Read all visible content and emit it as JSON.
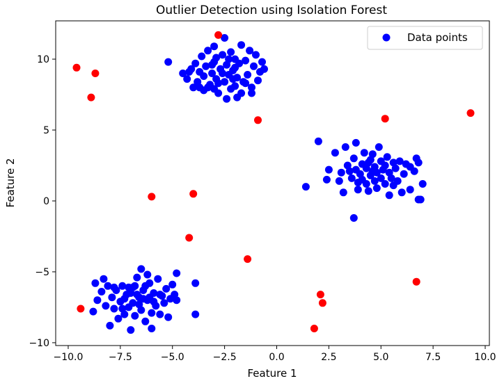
{
  "chart_data": {
    "type": "scatter",
    "title": "Outlier Detection using Isolation Forest",
    "xlabel": "Feature 1",
    "ylabel": "Feature 2",
    "xlim": [
      -10.6,
      10.2
    ],
    "ylim": [
      -10.2,
      12.7
    ],
    "grid": false,
    "legend": {
      "placement": "top-right",
      "entries": [
        "Data points"
      ]
    },
    "colors": {
      "inliers": "#0000ff",
      "outliers": "#ff0000"
    },
    "xticks": [
      {
        "value": -10.0,
        "label": "−10.0"
      },
      {
        "value": -7.5,
        "label": "−7.5"
      },
      {
        "value": -5.0,
        "label": "−5.0"
      },
      {
        "value": -2.5,
        "label": "−2.5"
      },
      {
        "value": 0.0,
        "label": "0.0"
      },
      {
        "value": 2.5,
        "label": "2.5"
      },
      {
        "value": 5.0,
        "label": "5.0"
      },
      {
        "value": 7.5,
        "label": "7.5"
      },
      {
        "value": 10.0,
        "label": "10.0"
      }
    ],
    "yticks": [
      {
        "value": -10,
        "label": "−10"
      },
      {
        "value": -5,
        "label": "−5"
      },
      {
        "value": 0,
        "label": "0"
      },
      {
        "value": 5,
        "label": "5"
      },
      {
        "value": 10,
        "label": "10"
      }
    ],
    "series": [
      {
        "name": "Data points",
        "color": "#0000ff",
        "points": [
          [
            -5.2,
            9.8
          ],
          [
            -4.5,
            9.0
          ],
          [
            -4.3,
            8.6
          ],
          [
            -4.1,
            9.3
          ],
          [
            -4.0,
            8.0
          ],
          [
            -3.9,
            9.7
          ],
          [
            -3.8,
            8.4
          ],
          [
            -3.7,
            9.1
          ],
          [
            -3.6,
            10.2
          ],
          [
            -3.5,
            8.8
          ],
          [
            -3.5,
            7.8
          ],
          [
            -3.4,
            9.5
          ],
          [
            -3.3,
            10.6
          ],
          [
            -3.2,
            8.2
          ],
          [
            -3.1,
            9.0
          ],
          [
            -3.0,
            10.9
          ],
          [
            -3.0,
            9.8
          ],
          [
            -2.9,
            8.6
          ],
          [
            -2.8,
            7.6
          ],
          [
            -2.7,
            9.3
          ],
          [
            -2.6,
            10.3
          ],
          [
            -2.5,
            8.4
          ],
          [
            -2.5,
            11.5
          ],
          [
            -2.4,
            9.6
          ],
          [
            -2.3,
            8.9
          ],
          [
            -2.2,
            10.5
          ],
          [
            -2.2,
            7.9
          ],
          [
            -2.1,
            9.2
          ],
          [
            -2.0,
            8.1
          ],
          [
            -2.0,
            10.0
          ],
          [
            -1.9,
            7.3
          ],
          [
            -1.9,
            8.7
          ],
          [
            -1.8,
            9.7
          ],
          [
            -1.7,
            7.6
          ],
          [
            -1.7,
            11.0
          ],
          [
            -1.6,
            8.4
          ],
          [
            -1.5,
            9.9
          ],
          [
            -1.4,
            8.9
          ],
          [
            -1.3,
            10.6
          ],
          [
            -1.2,
            8.0
          ],
          [
            -1.1,
            9.5
          ],
          [
            -1.0,
            10.3
          ],
          [
            -0.9,
            8.5
          ],
          [
            -0.8,
            9.1
          ],
          [
            -0.7,
            9.8
          ],
          [
            -0.6,
            9.3
          ],
          [
            -1.2,
            7.6
          ],
          [
            -2.4,
            7.2
          ],
          [
            -2.9,
            10.1
          ],
          [
            -3.7,
            8.0
          ],
          [
            -3.3,
            8.0
          ],
          [
            -4.2,
            9.1
          ],
          [
            -2.6,
            9.0
          ],
          [
            -2.0,
            9.4
          ],
          [
            -1.5,
            8.3
          ],
          [
            -3.1,
            9.6
          ],
          [
            -2.8,
            8.3
          ],
          [
            -2.3,
            10.0
          ],
          [
            -3.0,
            7.9
          ],
          [
            -2.1,
            8.6
          ],
          [
            1.4,
            1.0
          ],
          [
            2.0,
            4.2
          ],
          [
            2.4,
            1.5
          ],
          [
            2.5,
            2.2
          ],
          [
            2.8,
            3.4
          ],
          [
            3.0,
            1.4
          ],
          [
            3.1,
            2.0
          ],
          [
            3.2,
            0.6
          ],
          [
            3.3,
            3.8
          ],
          [
            3.4,
            2.5
          ],
          [
            3.6,
            1.6
          ],
          [
            3.7,
            3.0
          ],
          [
            3.7,
            -1.2
          ],
          [
            3.8,
            2.2
          ],
          [
            3.8,
            4.1
          ],
          [
            3.9,
            0.8
          ],
          [
            4.0,
            1.9
          ],
          [
            4.1,
            2.6
          ],
          [
            4.2,
            3.4
          ],
          [
            4.3,
            1.2
          ],
          [
            4.3,
            2.3
          ],
          [
            4.4,
            0.7
          ],
          [
            4.5,
            1.8
          ],
          [
            4.5,
            2.9
          ],
          [
            4.6,
            3.3
          ],
          [
            4.7,
            1.4
          ],
          [
            4.7,
            2.4
          ],
          [
            4.8,
            0.9
          ],
          [
            4.8,
            2.0
          ],
          [
            4.9,
            3.8
          ],
          [
            5.0,
            1.6
          ],
          [
            5.0,
            2.8
          ],
          [
            5.1,
            2.2
          ],
          [
            5.2,
            1.2
          ],
          [
            5.3,
            3.1
          ],
          [
            5.4,
            0.4
          ],
          [
            5.4,
            2.0
          ],
          [
            5.5,
            1.6
          ],
          [
            5.6,
            2.7
          ],
          [
            5.7,
            2.3
          ],
          [
            5.8,
            1.4
          ],
          [
            5.9,
            2.8
          ],
          [
            6.0,
            0.6
          ],
          [
            6.1,
            1.9
          ],
          [
            6.2,
            2.6
          ],
          [
            6.4,
            2.4
          ],
          [
            6.6,
            2.1
          ],
          [
            6.7,
            3.0
          ],
          [
            6.8,
            0.1
          ],
          [
            6.8,
            2.7
          ],
          [
            6.9,
            0.1
          ],
          [
            7.0,
            1.2
          ],
          [
            4.1,
            1.5
          ],
          [
            4.6,
            2.1
          ],
          [
            5.2,
            2.5
          ],
          [
            3.9,
            1.3
          ],
          [
            4.4,
            2.7
          ],
          [
            5.6,
            1.1
          ],
          [
            6.4,
            0.8
          ],
          [
            3.5,
            2.1
          ],
          [
            -8.8,
            -7.8
          ],
          [
            -8.6,
            -7.0
          ],
          [
            -8.4,
            -6.4
          ],
          [
            -8.3,
            -5.5
          ],
          [
            -8.2,
            -7.4
          ],
          [
            -8.1,
            -6.0
          ],
          [
            -8.0,
            -8.8
          ],
          [
            -7.9,
            -6.8
          ],
          [
            -7.8,
            -7.6
          ],
          [
            -7.7,
            -6.3
          ],
          [
            -7.6,
            -8.3
          ],
          [
            -7.5,
            -7.1
          ],
          [
            -7.4,
            -6.0
          ],
          [
            -7.3,
            -8.0
          ],
          [
            -7.2,
            -6.6
          ],
          [
            -7.1,
            -7.5
          ],
          [
            -7.0,
            -9.1
          ],
          [
            -6.9,
            -6.1
          ],
          [
            -6.9,
            -7.2
          ],
          [
            -6.8,
            -8.1
          ],
          [
            -6.7,
            -5.4
          ],
          [
            -6.6,
            -6.8
          ],
          [
            -6.5,
            -7.7
          ],
          [
            -6.4,
            -6.3
          ],
          [
            -6.3,
            -8.5
          ],
          [
            -6.2,
            -7.0
          ],
          [
            -6.1,
            -5.8
          ],
          [
            -6.0,
            -7.9
          ],
          [
            -6.0,
            -9.0
          ],
          [
            -5.9,
            -6.5
          ],
          [
            -5.8,
            -7.4
          ],
          [
            -5.7,
            -5.5
          ],
          [
            -5.6,
            -8.0
          ],
          [
            -5.5,
            -6.7
          ],
          [
            -5.4,
            -7.2
          ],
          [
            -5.3,
            -6.2
          ],
          [
            -5.2,
            -8.2
          ],
          [
            -5.1,
            -6.9
          ],
          [
            -5.0,
            -5.9
          ],
          [
            -4.9,
            -6.6
          ],
          [
            -4.8,
            -5.1
          ],
          [
            -4.8,
            -7.0
          ],
          [
            -3.9,
            -5.8
          ],
          [
            -3.9,
            -8.0
          ],
          [
            -6.5,
            -4.8
          ],
          [
            -6.8,
            -6.0
          ],
          [
            -7.3,
            -6.9
          ],
          [
            -6.3,
            -6.0
          ],
          [
            -6.1,
            -6.8
          ],
          [
            -7.0,
            -6.5
          ],
          [
            -8.7,
            -5.8
          ],
          [
            -7.8,
            -6.1
          ],
          [
            -6.6,
            -7.3
          ],
          [
            -5.9,
            -7.1
          ],
          [
            -7.1,
            -6.1
          ],
          [
            -6.4,
            -6.9
          ],
          [
            -5.6,
            -6.6
          ],
          [
            -6.2,
            -5.2
          ],
          [
            -7.4,
            -7.6
          ],
          [
            -6.7,
            -6.6
          ]
        ]
      },
      {
        "name": "",
        "color": "#ff0000",
        "points": [
          [
            -9.6,
            9.4
          ],
          [
            -8.7,
            9.0
          ],
          [
            -8.9,
            7.3
          ],
          [
            -2.8,
            11.7
          ],
          [
            -0.9,
            5.7
          ],
          [
            5.2,
            5.8
          ],
          [
            9.3,
            6.2
          ],
          [
            -6.0,
            0.3
          ],
          [
            -4.0,
            0.5
          ],
          [
            -4.2,
            -2.6
          ],
          [
            -1.4,
            -4.1
          ],
          [
            -9.4,
            -7.6
          ],
          [
            6.7,
            -5.7
          ],
          [
            2.1,
            -6.6
          ],
          [
            2.2,
            -7.2
          ],
          [
            1.8,
            -9.0
          ]
        ]
      }
    ]
  }
}
